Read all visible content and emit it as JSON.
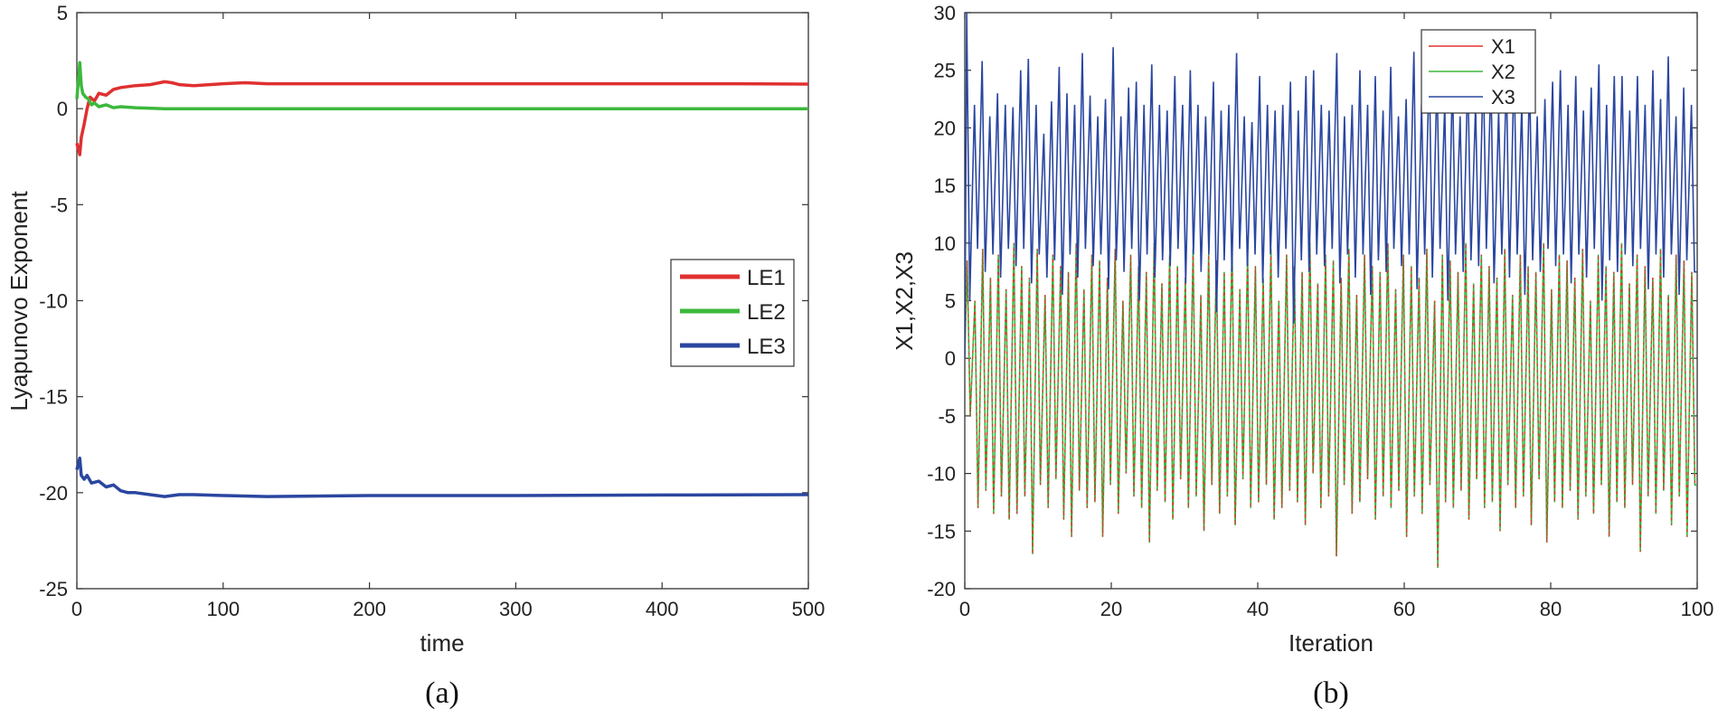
{
  "panel_labels": [
    "(a)",
    "(b)"
  ],
  "chart_data": [
    {
      "type": "line",
      "title": "",
      "xlabel": "time",
      "ylabel": "Lyapunovo Exponent",
      "xlim": [
        0,
        500
      ],
      "ylim": [
        -25,
        5
      ],
      "xticks": [
        0,
        100,
        200,
        300,
        400,
        500
      ],
      "yticks": [
        5,
        0,
        -5,
        -10,
        -15,
        -20,
        -25
      ],
      "grid": false,
      "legend": "center-right",
      "series": [
        {
          "name": "LE1",
          "color": "#e03030",
          "x": [
            0,
            2,
            3,
            5,
            7,
            9,
            12,
            15,
            20,
            25,
            30,
            40,
            50,
            60,
            65,
            70,
            80,
            100,
            115,
            130,
            160,
            200,
            250,
            300,
            350,
            400,
            450,
            500
          ],
          "y": [
            -1.8,
            -2.4,
            -1.5,
            -0.8,
            0.0,
            0.6,
            0.4,
            0.8,
            0.7,
            1.0,
            1.1,
            1.2,
            1.25,
            1.4,
            1.35,
            1.25,
            1.2,
            1.3,
            1.35,
            1.3,
            1.3,
            1.3,
            1.3,
            1.3,
            1.3,
            1.3,
            1.3,
            1.28
          ]
        },
        {
          "name": "LE2",
          "color": "#3cb83c",
          "x": [
            0,
            2,
            3,
            4,
            6,
            8,
            10,
            12,
            15,
            20,
            25,
            30,
            40,
            60,
            100,
            200,
            300,
            400,
            500
          ],
          "y": [
            0.5,
            2.4,
            1.2,
            0.8,
            0.6,
            0.5,
            0.2,
            0.3,
            0.1,
            0.2,
            0.05,
            0.1,
            0.05,
            0.0,
            0.0,
            0.0,
            0.0,
            0.0,
            0.0
          ]
        },
        {
          "name": "LE3",
          "color": "#2a46a0",
          "x": [
            0,
            2,
            3,
            5,
            7,
            10,
            15,
            20,
            25,
            30,
            35,
            40,
            50,
            60,
            70,
            80,
            100,
            130,
            200,
            300,
            400,
            500
          ],
          "y": [
            -18.8,
            -18.2,
            -19.1,
            -19.3,
            -19.1,
            -19.5,
            -19.4,
            -19.7,
            -19.6,
            -19.9,
            -20.0,
            -20.0,
            -20.1,
            -20.2,
            -20.1,
            -20.1,
            -20.15,
            -20.2,
            -20.15,
            -20.15,
            -20.12,
            -20.1
          ]
        }
      ]
    },
    {
      "type": "line",
      "title": "",
      "xlabel": "Iteration",
      "ylabel": "X1,X2,X3",
      "xlim": [
        0,
        100
      ],
      "ylim": [
        -20,
        30
      ],
      "xticks": [
        0,
        20,
        40,
        60,
        80,
        100
      ],
      "yticks": [
        30,
        25,
        20,
        15,
        10,
        5,
        0,
        -5,
        -10,
        -15,
        -20
      ],
      "grid": false,
      "legend": "top-center",
      "series": [
        {
          "name": "X1",
          "color": "#e03030"
        },
        {
          "name": "X2",
          "color": "#3cb83c"
        },
        {
          "name": "X3",
          "color": "#2a46a0"
        }
      ],
      "oscillation": {
        "x_start": 0,
        "x_end": 100,
        "period": 1.05,
        "X3_peaks": [
          30.0,
          22.0,
          25.8,
          21.0,
          23.0,
          22.0,
          21.8,
          25.0,
          26.0,
          22.0,
          19.5,
          22.3,
          25.3,
          23.0,
          22.0,
          26.5,
          22.8,
          21.0,
          22.5,
          27.0,
          21.0,
          23.5,
          24.0,
          22.0,
          25.5,
          22.0,
          21.5,
          24.5,
          22.0,
          25.0,
          22.0,
          21.0,
          24.0,
          21.5,
          22.0,
          26.5,
          21.0,
          20.5,
          24.5,
          22.0,
          21.5,
          22.0,
          24.0,
          21.5,
          24.5,
          25.0,
          22.0,
          21.5,
          26.5,
          21.0,
          22.0,
          25.0,
          22.0,
          24.5,
          21.5,
          25.3,
          21.0,
          22.5,
          26.6,
          22.0,
          25.5,
          24.5,
          22.0,
          24.5,
          21.0,
          25.0,
          22.0,
          25.5,
          24.5,
          21.5,
          24.5,
          25.5,
          22.0,
          24.5,
          21.0,
          22.5,
          24.0,
          25.0,
          22.0,
          24.5,
          21.5,
          23.5,
          25.5,
          22.0,
          24.5,
          24.5,
          21.5,
          24.5,
          22.0,
          25.0,
          22.5,
          26.2,
          21.0,
          23.5,
          22.0
        ],
        "X3_troughs": [
          5.0,
          9.5,
          7.5,
          9.0,
          7.0,
          9.5,
          8.0,
          9.5,
          6.5,
          9.0,
          7.0,
          8.5,
          5.5,
          9.0,
          7.0,
          9.5,
          8.0,
          9.0,
          6.0,
          8.5,
          7.5,
          9.5,
          5.0,
          9.0,
          7.0,
          8.5,
          8.0,
          9.5,
          6.5,
          9.0,
          7.5,
          9.0,
          4.0,
          8.5,
          7.5,
          9.5,
          8.0,
          9.0,
          6.5,
          9.0,
          7.0,
          9.5,
          3.0,
          8.5,
          7.5,
          9.0,
          8.0,
          9.5,
          6.5,
          9.0,
          7.0,
          9.0,
          5.5,
          8.5,
          7.5,
          9.5,
          8.0,
          9.0,
          6.0,
          9.0,
          7.0,
          9.5,
          5.0,
          9.0,
          7.5,
          8.5,
          8.0,
          9.5,
          6.5,
          9.0,
          7.0,
          9.0,
          5.5,
          8.5,
          7.5,
          9.5,
          8.0,
          9.0,
          6.5,
          9.0,
          7.0,
          9.5,
          5.0,
          8.5,
          7.5,
          9.0,
          8.0,
          9.5,
          6.0,
          9.0,
          7.0,
          9.0,
          5.5,
          8.5,
          7.5
        ],
        "X12_peaks": [
          8.5,
          5.0,
          9.5,
          7.0,
          9.0,
          6.0,
          10.0,
          8.0,
          7.0,
          9.5,
          5.5,
          9.0,
          8.0,
          7.5,
          10.0,
          6.0,
          9.0,
          8.5,
          7.0,
          9.5,
          5.0,
          9.0,
          8.0,
          7.5,
          10.0,
          6.5,
          9.0,
          8.0,
          7.0,
          9.5,
          5.5,
          9.0,
          8.5,
          7.5,
          10.0,
          6.0,
          9.0,
          8.0,
          7.0,
          9.5,
          5.0,
          9.0,
          8.0,
          7.5,
          10.0,
          6.5,
          9.0,
          8.5,
          7.0,
          9.5,
          5.5,
          9.0,
          8.0,
          7.5,
          10.0,
          6.0,
          9.0,
          8.0,
          7.0,
          9.5,
          5.0,
          9.0,
          8.5,
          7.5,
          10.0,
          6.5,
          9.0,
          8.0,
          7.0,
          9.5,
          5.5,
          9.0,
          8.0,
          7.5,
          10.0,
          6.0,
          9.0,
          8.5,
          7.0,
          9.5,
          5.0,
          9.0,
          8.0,
          7.5,
          10.0,
          6.5,
          9.0,
          8.0,
          7.0,
          9.5,
          5.5,
          9.0,
          8.5,
          7.5,
          10.0
        ],
        "X12_troughs": [
          -5.0,
          -13.0,
          -11.5,
          -13.5,
          -12.0,
          -14.0,
          -13.5,
          -12.0,
          -17.0,
          -11.0,
          -13.0,
          -10.5,
          -14.0,
          -15.5,
          -11.5,
          -13.0,
          -12.5,
          -15.5,
          -11.0,
          -13.5,
          -10.0,
          -12.0,
          -13.0,
          -16.0,
          -11.5,
          -12.5,
          -14.0,
          -10.5,
          -13.0,
          -12.0,
          -15.0,
          -11.0,
          -13.5,
          -12.0,
          -14.5,
          -10.5,
          -13.0,
          -12.5,
          -11.0,
          -14.0,
          -13.0,
          -11.5,
          -12.5,
          -14.5,
          -10.0,
          -13.0,
          -12.0,
          -17.2,
          -11.0,
          -13.5,
          -12.5,
          -10.5,
          -14.0,
          -12.0,
          -13.0,
          -11.5,
          -15.5,
          -12.0,
          -13.5,
          -11.0,
          -18.2,
          -12.5,
          -13.0,
          -11.5,
          -14.0,
          -10.5,
          -13.0,
          -12.5,
          -15.0,
          -11.0,
          -13.0,
          -12.0,
          -14.5,
          -10.5,
          -16.0,
          -12.5,
          -13.0,
          -11.5,
          -14.0,
          -12.0,
          -13.5,
          -11.0,
          -15.5,
          -12.5,
          -13.0,
          -11.0,
          -16.8,
          -12.0,
          -13.5,
          -11.5,
          -14.5,
          -12.0,
          -15.5,
          -11.0
        ]
      }
    }
  ]
}
